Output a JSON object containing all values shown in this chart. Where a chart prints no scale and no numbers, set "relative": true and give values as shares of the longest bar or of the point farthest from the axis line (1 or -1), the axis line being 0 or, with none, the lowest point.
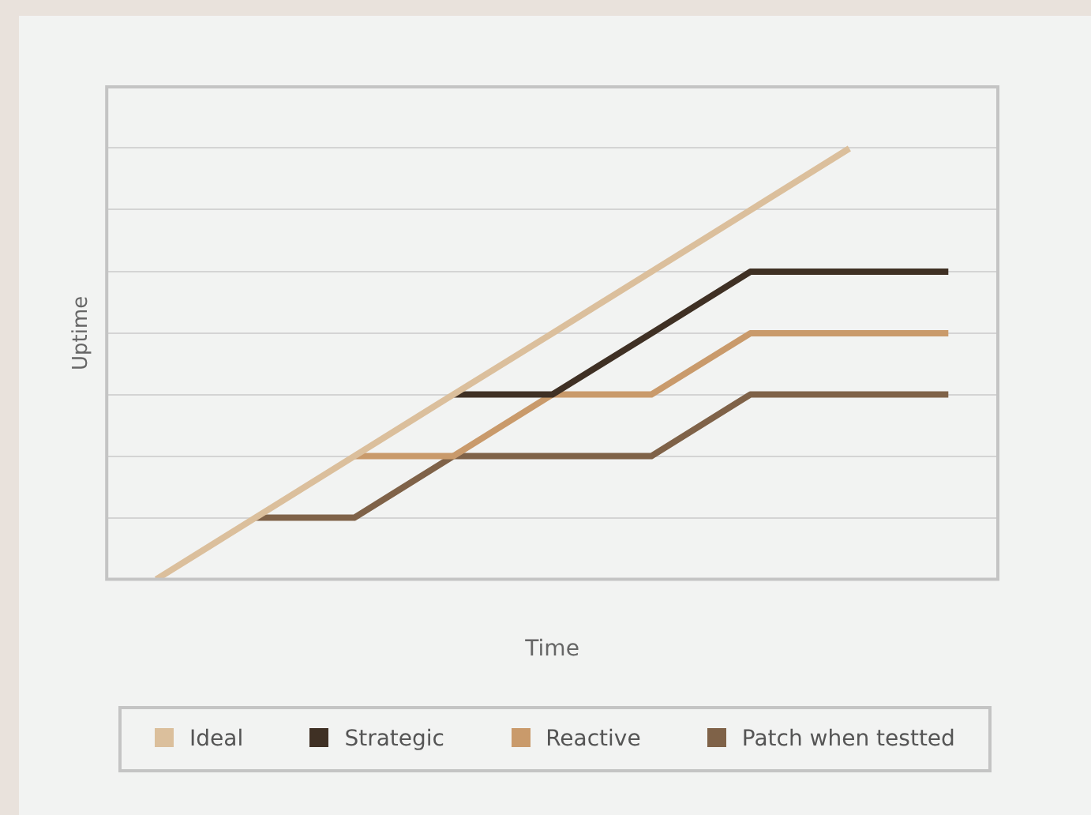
{
  "chart_data": {
    "type": "line",
    "xlabel": "Time",
    "ylabel": "Uptime",
    "relative": true,
    "grid": "y",
    "legend": "bottom",
    "marker": "none",
    "line_style": "solid",
    "categories": [
      null,
      null,
      null,
      null,
      null,
      null,
      null,
      null,
      null
    ],
    "series": [
      {
        "name": "Ideal",
        "color": "#dbbf9c",
        "values": [
          0,
          0.143,
          0.286,
          0.429,
          0.571,
          0.714,
          0.857,
          1,
          null
        ]
      },
      {
        "name": "Strategic",
        "color": "#3f3024",
        "values": [
          null,
          null,
          null,
          0.429,
          0.429,
          0.571,
          0.714,
          0.714,
          0.714
        ]
      },
      {
        "name": "Reactive",
        "color": "#c99a6b",
        "values": [
          null,
          null,
          0.286,
          0.286,
          0.429,
          0.429,
          0.571,
          0.571,
          0.571
        ]
      },
      {
        "name": "Patch when testted",
        "color": "#7f6248",
        "values": [
          null,
          0.143,
          0.143,
          0.286,
          0.286,
          0.286,
          0.429,
          0.429,
          0.429
        ]
      }
    ]
  }
}
